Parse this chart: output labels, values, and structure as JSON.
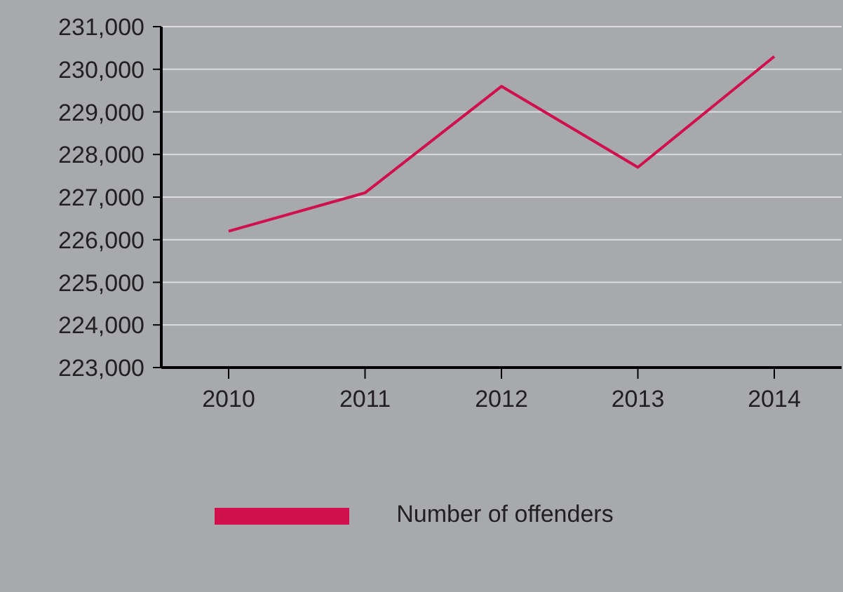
{
  "chart_data": {
    "type": "line",
    "categories": [
      "2010",
      "2011",
      "2012",
      "2013",
      "2014"
    ],
    "series": [
      {
        "name": "Number of offenders",
        "color": "#d0104c",
        "values": [
          226200,
          227100,
          229600,
          227700,
          230300
        ]
      }
    ],
    "ylim": [
      223000,
      231000
    ],
    "yticks": [
      {
        "value": 223000,
        "label": "223,000"
      },
      {
        "value": 224000,
        "label": "224,000"
      },
      {
        "value": 225000,
        "label": "225,000"
      },
      {
        "value": 226000,
        "label": "226,000"
      },
      {
        "value": 227000,
        "label": "227,000"
      },
      {
        "value": 228000,
        "label": "228,000"
      },
      {
        "value": 229000,
        "label": "229,000"
      },
      {
        "value": 230000,
        "label": "230,000"
      },
      {
        "value": 231000,
        "label": "231,000"
      }
    ],
    "grid": "y",
    "legend": "bottom",
    "marker": "none",
    "line_style": "solid"
  }
}
